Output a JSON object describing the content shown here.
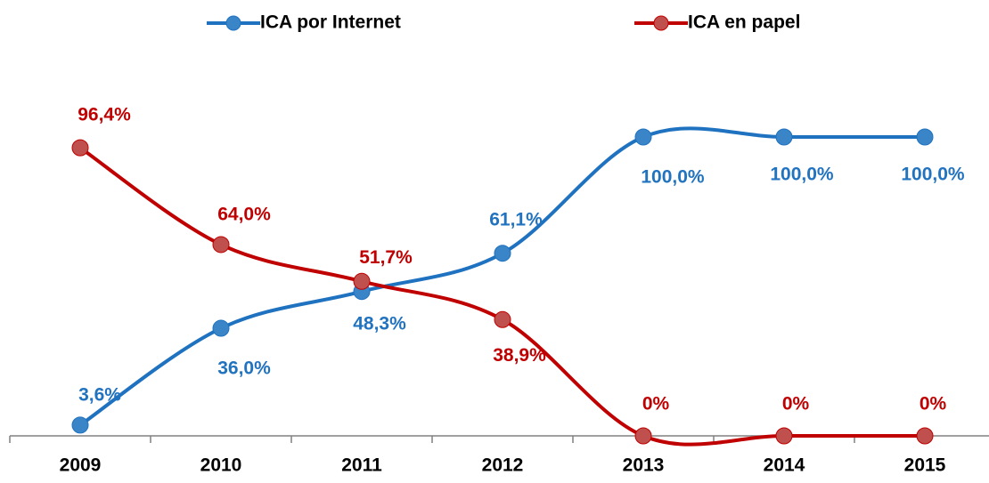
{
  "chart_data": {
    "type": "line",
    "categories": [
      "2009",
      "2010",
      "2011",
      "2012",
      "2013",
      "2014",
      "2015"
    ],
    "ylim": [
      0,
      100
    ],
    "legend": "top",
    "series": [
      {
        "name": "ICA por Internet",
        "color": "#1f72c0",
        "marker_color": "#3a85c8",
        "label_color": "#2273bf",
        "values": [
          3.6,
          36.0,
          48.3,
          61.1,
          100.0,
          100.0,
          100.0
        ],
        "value_labels": [
          "3,6%",
          "36,0%",
          "48,3%",
          "61,1%",
          "100,0%",
          "100,0%",
          "100,0%"
        ]
      },
      {
        "name": "ICA en papel",
        "color": "#c00000",
        "marker_color": "#c0504d",
        "label_color": "#c00000",
        "values": [
          96.4,
          64.0,
          51.7,
          38.9,
          0,
          0,
          0
        ],
        "value_labels": [
          "96,4%",
          "64,0%",
          "51,7%",
          "38,9%",
          "0%",
          "0%",
          "0%"
        ]
      }
    ]
  }
}
